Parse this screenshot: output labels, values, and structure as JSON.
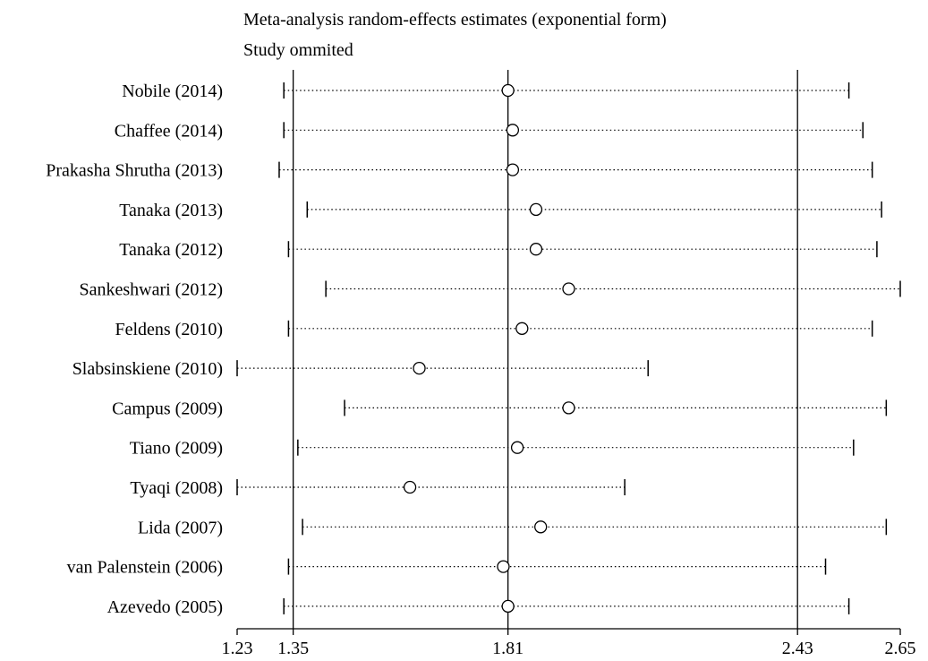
{
  "chart_data": {
    "type": "forest",
    "title": "Meta-analysis random-effects estimates (exponential form)",
    "subtitle": "Study ommited",
    "xlim": [
      1.23,
      2.65
    ],
    "x_ticks": [
      "1.23",
      "1.35",
      "1.81",
      "2.43",
      "2.65"
    ],
    "reference_lines": [
      1.35,
      1.81,
      2.43
    ],
    "studies": [
      {
        "label": "Nobile (2014)",
        "estimate": 1.81,
        "lower": 1.33,
        "upper": 2.54
      },
      {
        "label": "Chaffee (2014)",
        "estimate": 1.82,
        "lower": 1.33,
        "upper": 2.57
      },
      {
        "label": "Prakasha Shrutha (2013)",
        "estimate": 1.82,
        "lower": 1.32,
        "upper": 2.59
      },
      {
        "label": "Tanaka (2013)",
        "estimate": 1.87,
        "lower": 1.38,
        "upper": 2.61
      },
      {
        "label": "Tanaka (2012)",
        "estimate": 1.87,
        "lower": 1.34,
        "upper": 2.6
      },
      {
        "label": "Sankeshwari (2012)",
        "estimate": 1.94,
        "lower": 1.42,
        "upper": 2.65
      },
      {
        "label": "Feldens (2010)",
        "estimate": 1.84,
        "lower": 1.34,
        "upper": 2.59
      },
      {
        "label": "Slabsinskiene (2010)",
        "estimate": 1.62,
        "lower": 1.23,
        "upper": 2.11
      },
      {
        "label": "Campus (2009)",
        "estimate": 1.94,
        "lower": 1.46,
        "upper": 2.62
      },
      {
        "label": "Tiano (2009)",
        "estimate": 1.83,
        "lower": 1.36,
        "upper": 2.55
      },
      {
        "label": "Tyaqi (2008)",
        "estimate": 1.6,
        "lower": 1.23,
        "upper": 2.06
      },
      {
        "label": "Lida (2007)",
        "estimate": 1.88,
        "lower": 1.37,
        "upper": 2.62
      },
      {
        "label": "van Palenstein (2006)",
        "estimate": 1.8,
        "lower": 1.34,
        "upper": 2.49
      },
      {
        "label": "Azevedo (2005)",
        "estimate": 1.81,
        "lower": 1.33,
        "upper": 2.54
      }
    ]
  }
}
